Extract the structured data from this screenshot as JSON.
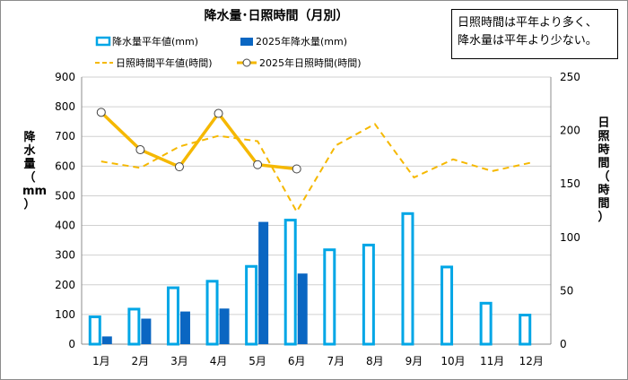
{
  "chart_data": {
    "type": "bar+line",
    "title": "降水量･日照時間（月別）",
    "categories": [
      "1月",
      "2月",
      "3月",
      "4月",
      "5月",
      "6月",
      "7月",
      "8月",
      "9月",
      "10月",
      "11月",
      "12月"
    ],
    "y_left": {
      "label": [
        "降",
        "水",
        "量",
        "（",
        "mm",
        "）"
      ],
      "range": [
        0,
        900
      ],
      "ticks": [
        "0",
        "100",
        "200",
        "300",
        "400",
        "500",
        "600",
        "700",
        "800",
        "900"
      ]
    },
    "y_right": {
      "label": [
        "日",
        "照",
        "時",
        "間",
        "（",
        "時",
        "間",
        "）"
      ],
      "range": [
        0,
        250
      ],
      "ticks": [
        "0",
        "50",
        "100",
        "150",
        "200",
        "250"
      ]
    },
    "series": [
      {
        "name": "降水量平年値(mm)",
        "type": "bar-outline",
        "axis": "left",
        "color": "#00a6e6",
        "values": [
          92,
          118,
          190,
          212,
          262,
          418,
          318,
          334,
          440,
          260,
          138,
          98
        ]
      },
      {
        "name": "2025年降水量(mm)",
        "type": "bar",
        "axis": "left",
        "color": "#0a66c2",
        "values": [
          26,
          86,
          110,
          120,
          412,
          238,
          null,
          null,
          null,
          null,
          null,
          null
        ]
      },
      {
        "name": "日照時間平年値(時間)",
        "type": "line-dashed",
        "axis": "right",
        "color": "#f5b800",
        "values": [
          171,
          165,
          185,
          195,
          190,
          124,
          186,
          206,
          156,
          173,
          162,
          170
        ]
      },
      {
        "name": "2025年日照時間(時間)",
        "type": "line-markers",
        "axis": "right",
        "color": "#f5b800",
        "values": [
          217,
          182,
          166,
          216,
          168,
          164,
          null,
          null,
          null,
          null,
          null,
          null
        ]
      }
    ],
    "annotation": [
      "日照時間は平年より多く、",
      "降水量は平年より少ない。"
    ]
  }
}
